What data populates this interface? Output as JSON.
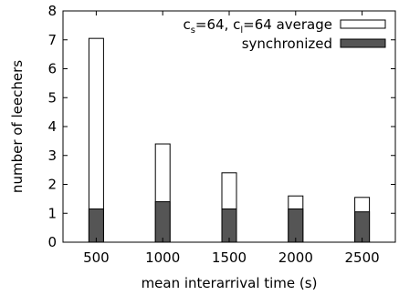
{
  "chart_data": {
    "type": "bar",
    "xlabel": "mean interarrival time (s)",
    "ylabel": "number of leechers",
    "categories": [
      "500",
      "1000",
      "1500",
      "2000",
      "2500"
    ],
    "x": [
      500,
      1000,
      1500,
      2000,
      2500
    ],
    "xlim": [
      250,
      2750
    ],
    "ylim": [
      0,
      8
    ],
    "yticks": [
      "0",
      "1",
      "2",
      "3",
      "4",
      "5",
      "6",
      "7",
      "8"
    ],
    "series": [
      {
        "name": "cs=64, cl=64 average",
        "legend_parts": {
          "p1": "c",
          "sub1": "s",
          "p2": "=64, c",
          "sub2": "l",
          "p3": "=64 average"
        },
        "values": [
          7.05,
          3.4,
          2.4,
          1.6,
          1.55
        ],
        "color": "#ffffff"
      },
      {
        "name": "synchronized",
        "values": [
          1.15,
          1.4,
          1.15,
          1.15,
          1.05
        ],
        "color": "#555555"
      }
    ],
    "legend_position": "top-right",
    "grid": false
  }
}
